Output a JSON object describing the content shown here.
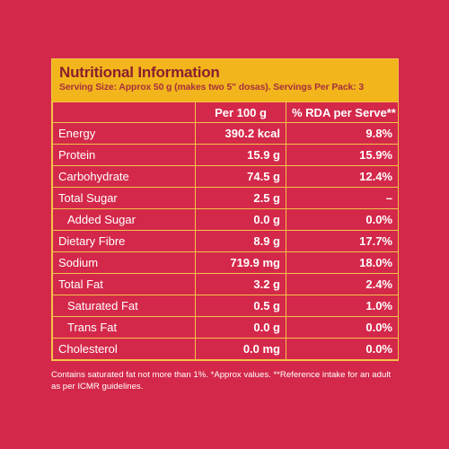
{
  "header": {
    "title": "Nutritional Information",
    "subtitle": "Serving Size: Approx 50 g (makes two 5\" dosas). Servings Per Pack: 3"
  },
  "table": {
    "columns": [
      "",
      "Per 100 g",
      "% RDA per Serve**"
    ],
    "rows": [
      {
        "nutrient": "Energy",
        "per100": "390.2 kcal",
        "rda": "9.8%"
      },
      {
        "nutrient": "Protein",
        "per100": "15.9 g",
        "rda": "15.9%"
      },
      {
        "nutrient": "Carbohydrate",
        "per100": "74.5 g",
        "rda": "12.4%"
      },
      {
        "nutrient": "Total Sugar",
        "per100": "2.5 g",
        "rda": "–"
      },
      {
        "nutrient": "Added Sugar",
        "per100": "0.0 g",
        "rda": "0.0%"
      },
      {
        "nutrient": "Dietary Fibre",
        "per100": "8.9 g",
        "rda": "17.7%"
      },
      {
        "nutrient": "Sodium",
        "per100": "719.9 mg",
        "rda": "18.0%"
      },
      {
        "nutrient": "Total Fat",
        "per100": "3.2 g",
        "rda": "2.4%"
      },
      {
        "nutrient": "Saturated Fat",
        "per100": "0.5 g",
        "rda": "1.0%"
      },
      {
        "nutrient": "Trans Fat",
        "per100": "0.0 g",
        "rda": "0.0%"
      },
      {
        "nutrient": "Cholesterol",
        "per100": "0.0 mg",
        "rda": "0.0%"
      }
    ]
  },
  "footnote": {
    "line1": "Contains saturated fat not more than 1%. *Approx values. **Reference intake for an adult",
    "line2": "as per ICMR guidelines."
  },
  "colors": {
    "background": "#d4284a",
    "header_band": "#f2b51c",
    "grid_lines": "#f2c24a",
    "title_text": "#8a1f2e",
    "body_text": "#ffffff"
  }
}
